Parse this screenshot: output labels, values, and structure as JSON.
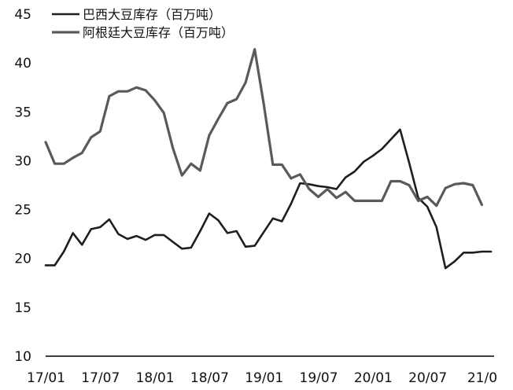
{
  "chart_data": {
    "type": "line",
    "title": "",
    "xlabel": "",
    "ylabel": "",
    "ylim": [
      10,
      45
    ],
    "y_ticks": [
      10,
      15,
      20,
      25,
      30,
      35,
      40,
      45
    ],
    "x_tick_labels": [
      "17/01",
      "17/07",
      "18/01",
      "18/07",
      "19/01",
      "19/07",
      "20/01",
      "20/07",
      "21/0"
    ],
    "x_tick_index": [
      0,
      6,
      12,
      18,
      24,
      30,
      36,
      42,
      48
    ],
    "grid": false,
    "legend_position": "top-left",
    "series": [
      {
        "name": "巴西大豆库存（百万吨）",
        "color": "#1e1e1e",
        "values": [
          19.3,
          19.3,
          20.7,
          22.6,
          21.4,
          23.0,
          23.2,
          24.0,
          22.5,
          22.0,
          22.3,
          21.9,
          22.4,
          22.4,
          21.7,
          21.0,
          21.1,
          22.8,
          24.6,
          23.9,
          22.6,
          22.8,
          21.2,
          21.3,
          22.7,
          24.1,
          23.8,
          25.6,
          27.7,
          27.6,
          27.4,
          27.3,
          27.1,
          28.3,
          28.9,
          29.9,
          30.5,
          31.2,
          32.2,
          33.2,
          29.8,
          26.2,
          25.3,
          23.2,
          19.0,
          19.7,
          20.6,
          20.6,
          20.7,
          20.7
        ]
      },
      {
        "name": "阿根廷大豆库存（百万吨）",
        "color": "#5a5a5a",
        "values": [
          31.9,
          29.7,
          29.7,
          30.3,
          30.8,
          32.4,
          33.0,
          36.6,
          37.1,
          37.1,
          37.5,
          37.2,
          36.2,
          34.9,
          31.3,
          28.5,
          29.7,
          29.0,
          32.6,
          34.3,
          35.9,
          36.3,
          38.0,
          41.4,
          35.8,
          29.6,
          29.6,
          28.2,
          28.6,
          27.1,
          26.3,
          27.1,
          26.2,
          26.8,
          25.9,
          25.9,
          25.9,
          25.9,
          27.9,
          27.9,
          27.5,
          25.9,
          26.3,
          25.4,
          27.2,
          27.6,
          27.7,
          27.5,
          25.5
        ]
      }
    ]
  }
}
